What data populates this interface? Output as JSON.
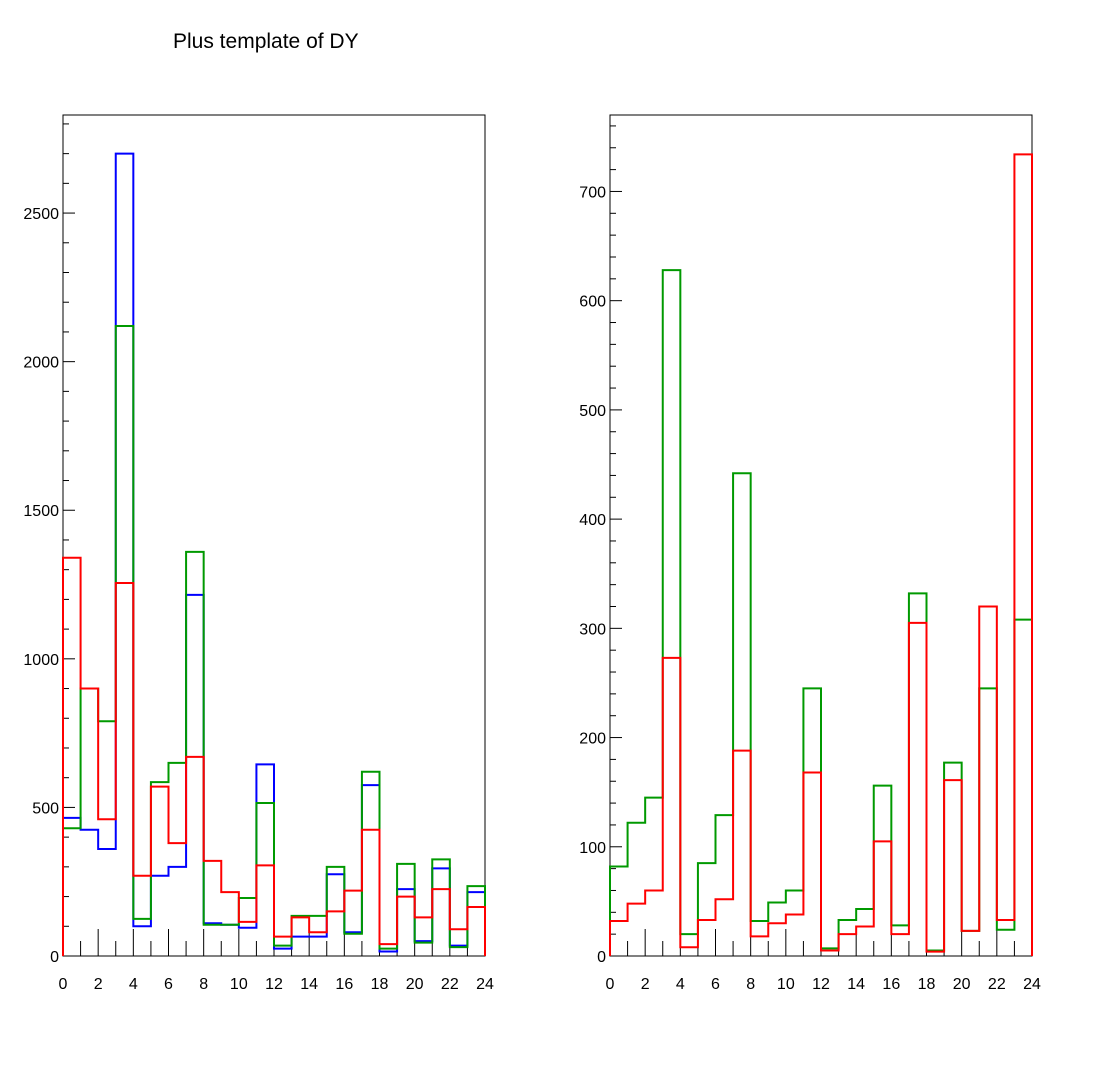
{
  "title": "Plus template of DY",
  "chart_data": [
    {
      "type": "histogram-step",
      "x_bins": [
        0,
        1,
        2,
        3,
        4,
        5,
        6,
        7,
        8,
        9,
        10,
        11,
        12,
        13,
        14,
        15,
        16,
        17,
        18,
        19,
        20,
        21,
        22,
        23,
        24
      ],
      "xlim": [
        0,
        24
      ],
      "ylim": [
        0,
        2830
      ],
      "x_ticks": [
        "0",
        "2",
        "4",
        "6",
        "8",
        "10",
        "12",
        "14",
        "16",
        "18",
        "20",
        "22",
        "24"
      ],
      "y_ticks": [
        "0",
        "500",
        "1000",
        "1500",
        "2000",
        "2500"
      ],
      "series": [
        {
          "color": "#0000ff",
          "values": [
            465,
            425,
            360,
            2700,
            100,
            270,
            300,
            1215,
            110,
            105,
            95,
            645,
            25,
            65,
            65,
            275,
            80,
            575,
            15,
            225,
            50,
            295,
            35,
            215
          ]
        },
        {
          "color": "#009900",
          "values": [
            430,
            900,
            790,
            2120,
            125,
            585,
            650,
            1360,
            105,
            105,
            195,
            515,
            35,
            135,
            135,
            300,
            75,
            620,
            25,
            310,
            45,
            325,
            30,
            235
          ]
        },
        {
          "color": "#ff0000",
          "values": [
            1340,
            900,
            460,
            1255,
            270,
            570,
            380,
            670,
            320,
            215,
            115,
            305,
            65,
            130,
            80,
            150,
            220,
            425,
            40,
            200,
            130,
            225,
            90,
            165
          ]
        }
      ]
    },
    {
      "type": "histogram-step",
      "x_bins": [
        0,
        1,
        2,
        3,
        4,
        5,
        6,
        7,
        8,
        9,
        10,
        11,
        12,
        13,
        14,
        15,
        16,
        17,
        18,
        19,
        20,
        21,
        22,
        23,
        24
      ],
      "xlim": [
        0,
        24
      ],
      "ylim": [
        0,
        770
      ],
      "x_ticks": [
        "0",
        "2",
        "4",
        "6",
        "8",
        "10",
        "12",
        "14",
        "16",
        "18",
        "20",
        "22",
        "24"
      ],
      "y_ticks": [
        "0",
        "100",
        "200",
        "300",
        "400",
        "500",
        "600",
        "700"
      ],
      "series": [
        {
          "color": "#009900",
          "values": [
            82,
            122,
            145,
            628,
            20,
            85,
            129,
            442,
            32,
            49,
            60,
            245,
            7,
            33,
            43,
            156,
            28,
            332,
            5,
            177,
            23,
            245,
            24,
            308
          ]
        },
        {
          "color": "#ff0000",
          "values": [
            32,
            48,
            60,
            273,
            8,
            33,
            52,
            188,
            18,
            30,
            38,
            168,
            5,
            20,
            27,
            105,
            20,
            305,
            4,
            161,
            23,
            320,
            33,
            734
          ]
        }
      ]
    }
  ]
}
